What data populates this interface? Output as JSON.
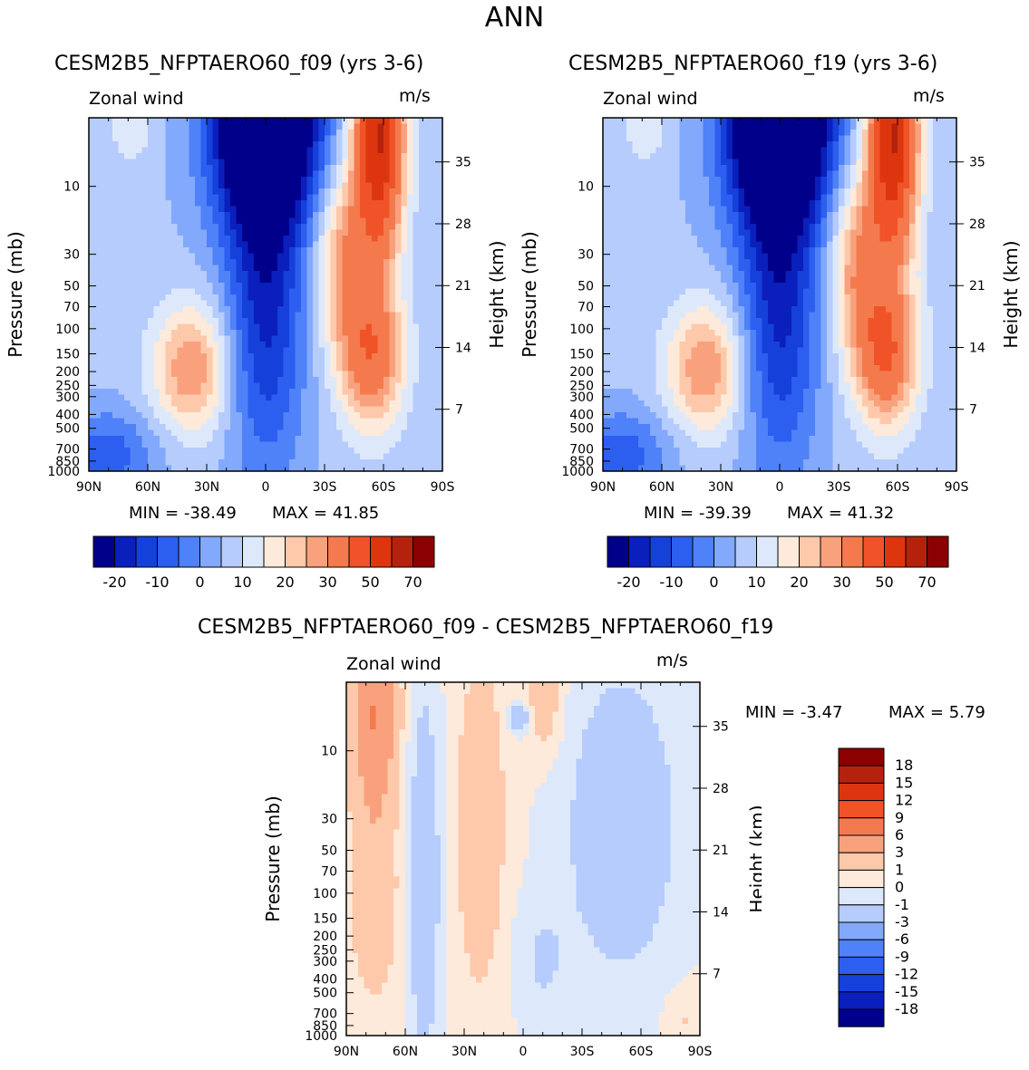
{
  "page_title": "ANN",
  "colors": {
    "abs_scale": [
      "#00008b",
      "#0a1fbb",
      "#1540d9",
      "#2c5ef0",
      "#4f81f8",
      "#83a9fc",
      "#b5ccfc",
      "#dde9fb",
      "#fdeadb",
      "#fdc9aa",
      "#f9a17d",
      "#f47a4d",
      "#f05327",
      "#dd360f",
      "#b4220d",
      "#8b0000"
    ],
    "diff_scale": [
      "#00008b",
      "#0a1fbb",
      "#1540d9",
      "#2c5ef0",
      "#4f81f8",
      "#83a9fc",
      "#b5ccfc",
      "#dde9fb",
      "#fdeadb",
      "#fdc9aa",
      "#f9a17d",
      "#f47a4d",
      "#f05327",
      "#dd360f",
      "#b4220d",
      "#8b0000"
    ]
  },
  "chart_data": [
    {
      "type": "heatmap",
      "title": "CESM2B5_NFPTAERO60_f09 (yrs 3-6)",
      "corner_left": "Zonal wind",
      "corner_right": "m/s",
      "ylabel": "Pressure (mb)",
      "ylabel_right": "Height (km)",
      "x_ticks": [
        "90N",
        "60N",
        "30N",
        "0",
        "30S",
        "60S",
        "90S"
      ],
      "y_ticks": [
        "10",
        "30",
        "50",
        "70",
        "100",
        "150",
        "200",
        "250",
        "300",
        "400",
        "500",
        "700",
        "850",
        "1000"
      ],
      "height_ticks": [
        "35",
        "28",
        "21",
        "14",
        "7"
      ],
      "min_label": "MIN = -38.49",
      "max_label": "MAX = 41.85",
      "min": -38.49,
      "max": 41.85,
      "colorbar_labels": [
        "-20",
        "-10",
        "0",
        "10",
        "20",
        "30",
        "50",
        "70"
      ]
    },
    {
      "type": "heatmap",
      "title": "CESM2B5_NFPTAERO60_f19 (yrs 3-6)",
      "corner_left": "Zonal wind",
      "corner_right": "m/s",
      "ylabel": "Pressure (mb)",
      "ylabel_right": "Height (km)",
      "x_ticks": [
        "90N",
        "60N",
        "30N",
        "0",
        "30S",
        "60S",
        "90S"
      ],
      "y_ticks": [
        "10",
        "30",
        "50",
        "70",
        "100",
        "150",
        "200",
        "250",
        "300",
        "400",
        "500",
        "700",
        "850",
        "1000"
      ],
      "height_ticks": [
        "35",
        "28",
        "21",
        "14",
        "7"
      ],
      "min_label": "MIN = -39.39",
      "max_label": "MAX = 41.32",
      "min": -39.39,
      "max": 41.32,
      "colorbar_labels": [
        "-20",
        "-10",
        "0",
        "10",
        "20",
        "30",
        "50",
        "70"
      ]
    },
    {
      "type": "heatmap",
      "title": "CESM2B5_NFPTAERO60_f09 - CESM2B5_NFPTAERO60_f19",
      "corner_left": "Zonal wind",
      "corner_right": "m/s",
      "ylabel": "Pressure (mb)",
      "ylabel_right": "Height (km)",
      "x_ticks": [
        "90N",
        "60N",
        "30N",
        "0",
        "30S",
        "60S",
        "90S"
      ],
      "y_ticks": [
        "10",
        "30",
        "50",
        "70",
        "100",
        "150",
        "200",
        "250",
        "300",
        "400",
        "500",
        "700",
        "850",
        "1000"
      ],
      "height_ticks": [
        "35",
        "28",
        "21",
        "14",
        "7"
      ],
      "min_label": "MIN = -3.47",
      "max_label": "MAX = 5.79",
      "min": -3.47,
      "max": 5.79,
      "colorbar_labels": [
        "18",
        "15",
        "12",
        "9",
        "6",
        "3",
        "1",
        "0",
        "-1",
        "-3",
        "-6",
        "-9",
        "-12",
        "-15",
        "-18"
      ]
    }
  ]
}
